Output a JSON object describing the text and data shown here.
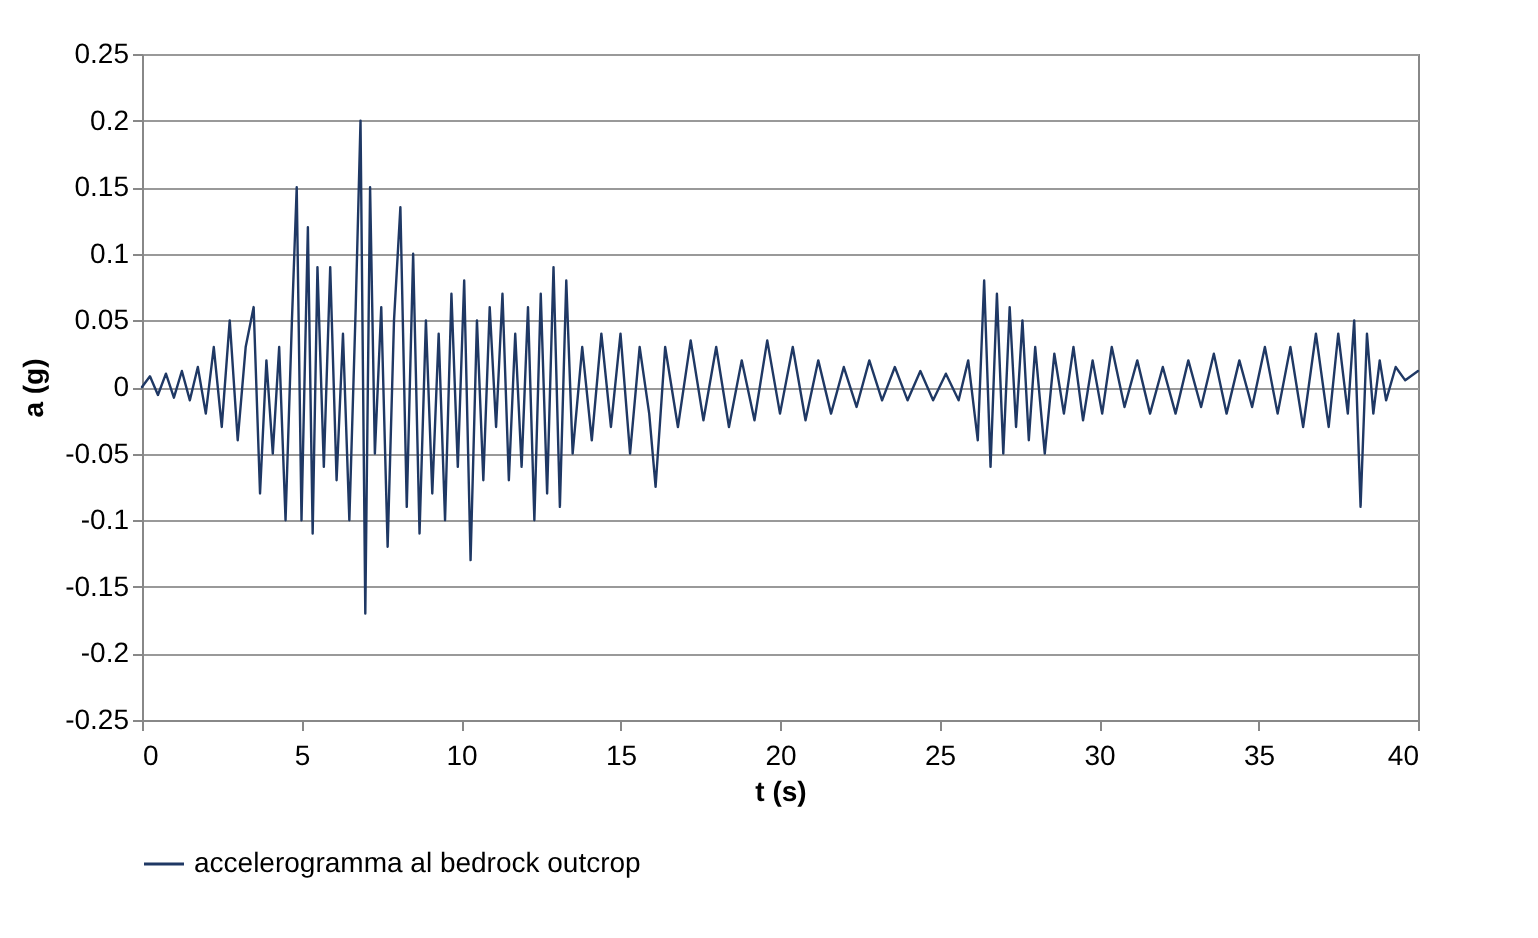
{
  "chart_data": {
    "type": "line",
    "xlabel": "t (s)",
    "ylabel": "a (g)",
    "xlim": [
      0,
      40
    ],
    "xticks": [
      0,
      5,
      10,
      15,
      20,
      25,
      30,
      35,
      40
    ],
    "ylim": [
      -0.25,
      0.25
    ],
    "yticks": [
      -0.25,
      -0.2,
      -0.15,
      -0.1,
      -0.05,
      0,
      0.05,
      0.1,
      0.15,
      0.2,
      0.25
    ],
    "grid": "y",
    "legend": "bottom",
    "x": [
      0,
      0.25,
      0.5,
      0.75,
      1,
      1.25,
      1.5,
      1.75,
      2,
      2.25,
      2.5,
      2.75,
      3,
      3.25,
      3.5,
      3.7,
      3.9,
      4.1,
      4.3,
      4.5,
      4.7,
      4.85,
      5,
      5.2,
      5.35,
      5.5,
      5.7,
      5.9,
      6.1,
      6.3,
      6.5,
      6.7,
      6.85,
      7,
      7.15,
      7.3,
      7.5,
      7.7,
      7.9,
      8.1,
      8.3,
      8.5,
      8.7,
      8.9,
      9.1,
      9.3,
      9.5,
      9.7,
      9.9,
      10.1,
      10.3,
      10.5,
      10.7,
      10.9,
      11.1,
      11.3,
      11.5,
      11.7,
      11.9,
      12.1,
      12.3,
      12.5,
      12.7,
      12.9,
      13.1,
      13.3,
      13.5,
      13.8,
      14.1,
      14.4,
      14.7,
      15,
      15.3,
      15.6,
      15.9,
      16.1,
      16.4,
      16.8,
      17.2,
      17.6,
      18,
      18.4,
      18.8,
      19.2,
      19.6,
      20,
      20.4,
      20.8,
      21.2,
      21.6,
      22,
      22.4,
      22.8,
      23.2,
      23.6,
      24,
      24.4,
      24.8,
      25.2,
      25.6,
      25.9,
      26.2,
      26.4,
      26.6,
      26.8,
      27,
      27.2,
      27.4,
      27.6,
      27.8,
      28,
      28.3,
      28.6,
      28.9,
      29.2,
      29.5,
      29.8,
      30.1,
      30.4,
      30.8,
      31.2,
      31.6,
      32,
      32.4,
      32.8,
      33.2,
      33.6,
      34,
      34.4,
      34.8,
      35.2,
      35.6,
      36,
      36.4,
      36.8,
      37.2,
      37.5,
      37.8,
      38,
      38.2,
      38.4,
      38.6,
      38.8,
      39,
      39.3,
      39.6,
      40
    ],
    "series": [
      {
        "name": "accelerogramma al bedrock outcrop",
        "color": "#1f3864",
        "values": [
          0,
          0.008,
          -0.006,
          0.01,
          -0.008,
          0.012,
          -0.01,
          0.015,
          -0.02,
          0.03,
          -0.03,
          0.05,
          -0.04,
          0.03,
          0.06,
          -0.08,
          0.02,
          -0.05,
          0.03,
          -0.1,
          0.05,
          0.15,
          -0.1,
          0.12,
          -0.11,
          0.09,
          -0.06,
          0.09,
          -0.07,
          0.04,
          -0.1,
          0.06,
          0.2,
          -0.17,
          0.15,
          -0.05,
          0.06,
          -0.12,
          0.05,
          0.135,
          -0.09,
          0.1,
          -0.11,
          0.05,
          -0.08,
          0.04,
          -0.1,
          0.07,
          -0.06,
          0.08,
          -0.13,
          0.05,
          -0.07,
          0.06,
          -0.03,
          0.07,
          -0.07,
          0.04,
          -0.06,
          0.06,
          -0.1,
          0.07,
          -0.08,
          0.09,
          -0.09,
          0.08,
          -0.05,
          0.03,
          -0.04,
          0.04,
          -0.03,
          0.04,
          -0.05,
          0.03,
          -0.02,
          -0.075,
          0.03,
          -0.03,
          0.035,
          -0.025,
          0.03,
          -0.03,
          0.02,
          -0.025,
          0.035,
          -0.02,
          0.03,
          -0.025,
          0.02,
          -0.02,
          0.015,
          -0.015,
          0.02,
          -0.01,
          0.015,
          -0.01,
          0.012,
          -0.01,
          0.01,
          -0.01,
          0.02,
          -0.04,
          0.08,
          -0.06,
          0.07,
          -0.05,
          0.06,
          -0.03,
          0.05,
          -0.04,
          0.03,
          -0.05,
          0.025,
          -0.02,
          0.03,
          -0.025,
          0.02,
          -0.02,
          0.03,
          -0.015,
          0.02,
          -0.02,
          0.015,
          -0.02,
          0.02,
          -0.015,
          0.025,
          -0.02,
          0.02,
          -0.015,
          0.03,
          -0.02,
          0.03,
          -0.03,
          0.04,
          -0.03,
          0.04,
          -0.02,
          0.05,
          -0.09,
          0.04,
          -0.02,
          0.02,
          -0.01,
          0.015,
          0.005,
          0.012
        ]
      }
    ]
  }
}
